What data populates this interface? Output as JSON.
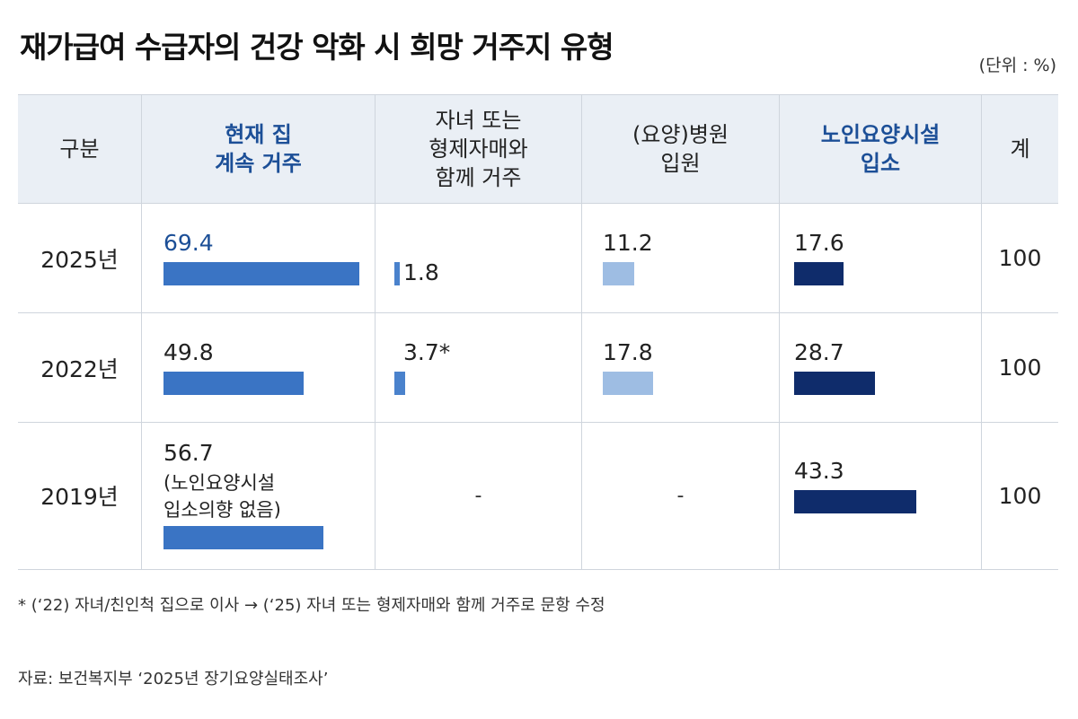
{
  "title": "재가급여 수급자의 건강 악화 시 희망 거주지 유형",
  "unit": "(단위 : %)",
  "headers": {
    "category": "구분",
    "col1": "현재 집\n계속 거주",
    "col2": "자녀 또는\n형제자매와\n함께 거주",
    "col3": "(요양)병원\n입원",
    "col4": "노인요양시설\n입소",
    "total": "계"
  },
  "colors": {
    "col1": "#3a74c4",
    "col2": "#4a82cc",
    "col3": "#9ebde3",
    "col4": "#0f2c6b",
    "header_accent": "#1c4f97"
  },
  "rows": [
    {
      "year": "2025년",
      "total": "100",
      "col1": "69.4",
      "col2": "1.8",
      "col3": "11.2",
      "col4": "17.6"
    },
    {
      "year": "2022년",
      "total": "100",
      "col1": "49.8",
      "col2": "3.7*",
      "col3": "17.8",
      "col4": "28.7"
    },
    {
      "year": "2019년",
      "total": "100",
      "col1": "56.7",
      "col1_note": "(노인요양시설\n입소의향 없음)",
      "col2": "-",
      "col3": "-",
      "col4": "43.3"
    }
  ],
  "chart_data": {
    "type": "bar",
    "categories": [
      "2025년",
      "2022년",
      "2019년"
    ],
    "series": [
      {
        "name": "현재 집 계속 거주",
        "values": [
          69.4,
          49.8,
          56.7
        ]
      },
      {
        "name": "자녀 또는 형제자매와 함께 거주",
        "values": [
          1.8,
          3.7,
          null
        ]
      },
      {
        "name": "(요양)병원 입원",
        "values": [
          11.2,
          17.8,
          null
        ]
      },
      {
        "name": "노인요양시설 입소",
        "values": [
          17.6,
          28.7,
          43.3
        ]
      }
    ]
  },
  "footnote": "* (‘22) 자녀/친인척 집으로 이사 → (‘25) 자녀 또는 형제자매와 함께 거주로 문항 수정",
  "source": "자료: 보건복지부 ‘2025년 장기요양실태조사’"
}
